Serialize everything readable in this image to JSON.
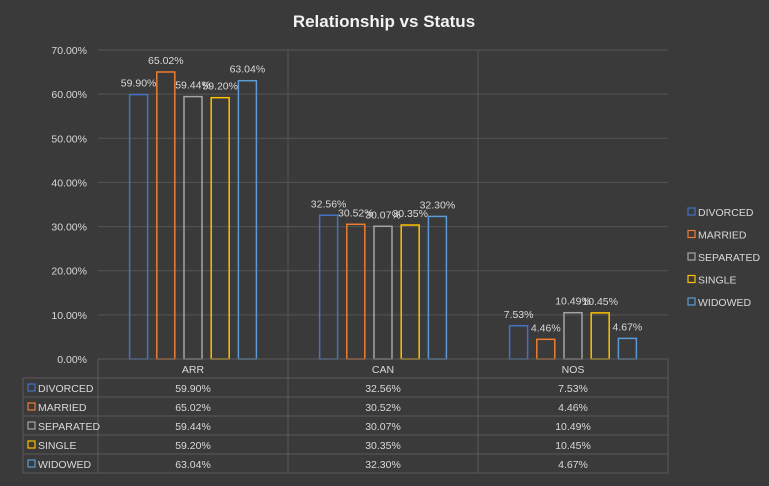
{
  "chart_data": {
    "type": "bar",
    "title": "Relationship vs Status",
    "categories": [
      "ARR",
      "CAN",
      "NOS"
    ],
    "ylim": [
      0,
      70
    ],
    "yticks": [
      "0.00%",
      "10.00%",
      "20.00%",
      "30.00%",
      "40.00%",
      "50.00%",
      "60.00%",
      "70.00%"
    ],
    "grid": true,
    "legend_position": "right",
    "series": [
      {
        "name": "DIVORCED",
        "color": "#4472c4",
        "values": [
          59.9,
          32.56,
          7.53
        ],
        "labels": [
          "59.90%",
          "32.56%",
          "7.53%"
        ]
      },
      {
        "name": "MARRIED",
        "color": "#ed7d31",
        "values": [
          65.02,
          30.52,
          4.46
        ],
        "labels": [
          "65.02%",
          "30.52%",
          "4.46%"
        ]
      },
      {
        "name": "SEPARATED",
        "color": "#a5a5a5",
        "values": [
          59.44,
          30.07,
          10.49
        ],
        "labels": [
          "59.44%",
          "30.07%",
          "10.49%"
        ]
      },
      {
        "name": "SINGLE",
        "color": "#ffc000",
        "values": [
          59.2,
          30.35,
          10.45
        ],
        "labels": [
          "59.20%",
          "30.35%",
          "10.45%"
        ]
      },
      {
        "name": "WIDOWED",
        "color": "#5b9bd5",
        "values": [
          63.04,
          32.3,
          4.67
        ],
        "labels": [
          "63.04%",
          "32.30%",
          "4.67%"
        ]
      }
    ]
  }
}
